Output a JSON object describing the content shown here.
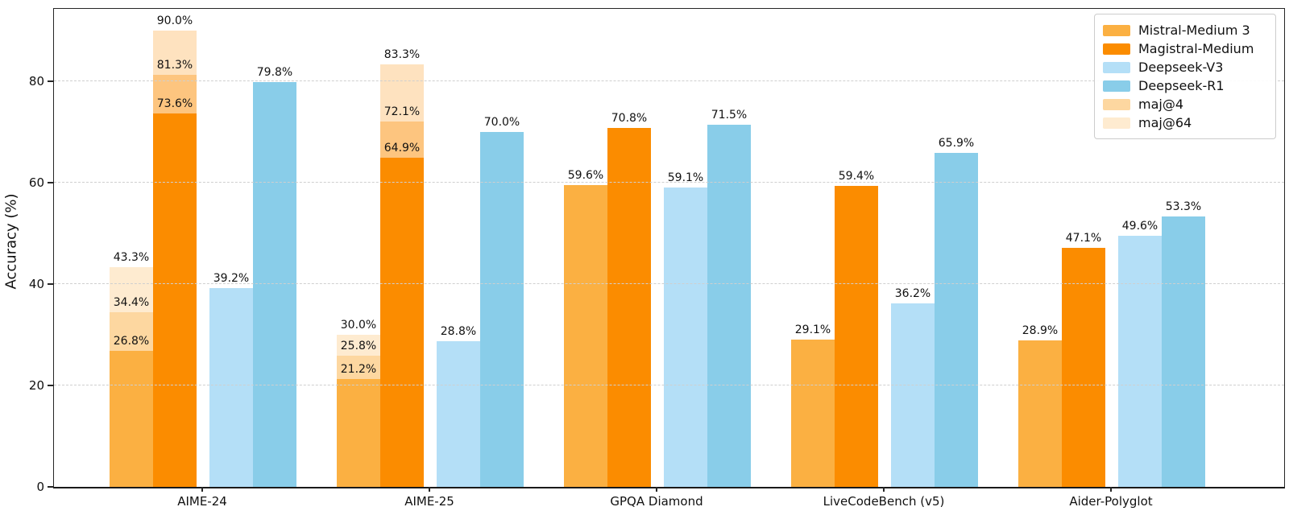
{
  "figure": {
    "background": "#ffffff",
    "axis_color": "#262626",
    "grid_color": "#cfcfcf",
    "text_color": "#111111"
  },
  "chart_data": {
    "type": "bar",
    "title": "",
    "xlabel": "",
    "ylabel": "Accuracy (%)",
    "ylim": [
      0,
      94.3
    ],
    "yticks": [
      0,
      20,
      40,
      60,
      80
    ],
    "grid": "horizontal-dashed",
    "legend_position": "upper-right",
    "value_label_format": "{value}%",
    "categories": [
      "AIME-24",
      "AIME-25",
      "GPQA Diamond",
      "LiveCodeBench (v5)",
      "Aider-Polyglot"
    ],
    "series": [
      {
        "name": "Mistral-Medium 3",
        "color": "#FBB042",
        "values": [
          26.8,
          21.2,
          59.6,
          29.1,
          28.9
        ],
        "maj4": [
          34.4,
          25.8,
          null,
          null,
          null
        ],
        "maj64": [
          43.3,
          30.0,
          null,
          null,
          null
        ]
      },
      {
        "name": "Magistral-Medium",
        "color": "#FB8C00",
        "values": [
          73.6,
          64.9,
          70.8,
          59.4,
          47.1
        ],
        "maj4": [
          81.3,
          72.1,
          null,
          null,
          null
        ],
        "maj64": [
          90.0,
          83.3,
          null,
          null,
          null
        ]
      },
      {
        "name": "Deepseek-V3",
        "color": "#B4DFF7",
        "values": [
          39.2,
          28.8,
          59.1,
          36.2,
          49.6
        ],
        "maj4": [
          null,
          null,
          null,
          null,
          null
        ],
        "maj64": [
          null,
          null,
          null,
          null,
          null
        ]
      },
      {
        "name": "Deepseek-R1",
        "color": "#89CDE9",
        "values": [
          79.8,
          70.0,
          71.5,
          65.9,
          53.3
        ],
        "maj4": [
          null,
          null,
          null,
          null,
          null
        ],
        "maj64": [
          null,
          null,
          null,
          null,
          null
        ]
      }
    ],
    "overlays": [
      {
        "name": "maj@4",
        "alpha": 0.5,
        "applies_to": [
          "Mistral-Medium 3",
          "Magistral-Medium"
        ]
      },
      {
        "name": "maj@64",
        "alpha": 0.25,
        "applies_to": [
          "Mistral-Medium 3",
          "Magistral-Medium"
        ]
      }
    ]
  },
  "legend": {
    "items": [
      {
        "label": "Mistral-Medium 3",
        "color": "#FBB042",
        "alpha": 1
      },
      {
        "label": "Magistral-Medium",
        "color": "#FB8C00",
        "alpha": 1
      },
      {
        "label": "Deepseek-V3",
        "color": "#B4DFF7",
        "alpha": 1
      },
      {
        "label": "Deepseek-R1",
        "color": "#89CDE9",
        "alpha": 1
      },
      {
        "label": "maj@4",
        "color": "#FBB042",
        "alpha": 0.5
      },
      {
        "label": "maj@64",
        "color": "#FBB042",
        "alpha": 0.25
      }
    ]
  }
}
